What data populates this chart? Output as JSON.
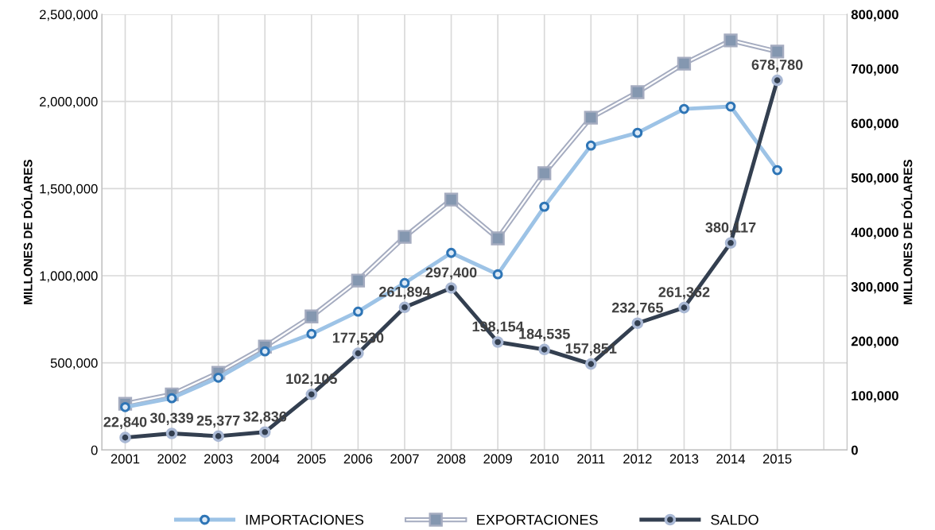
{
  "chart_data": {
    "type": "line",
    "ylabel": "MILLONES DE DÓLARES",
    "y2label": "MILLONES DE DÓLARES",
    "categories": [
      "2001",
      "2002",
      "2003",
      "2004",
      "2005",
      "2006",
      "2007",
      "2008",
      "2009",
      "2010",
      "2011",
      "2012",
      "2013",
      "2014",
      "2015",
      null
    ],
    "ylim": [
      0,
      2500000
    ],
    "yticks": [
      {
        "value": 0,
        "label": "0"
      },
      {
        "value": 500000,
        "label": "500,000"
      },
      {
        "value": 1000000,
        "label": "1,000,000"
      },
      {
        "value": 1500000,
        "label": "1,500,000"
      },
      {
        "value": 2000000,
        "label": "2,000,000"
      },
      {
        "value": 2500000,
        "label": "2,500,000"
      }
    ],
    "y2lim": [
      0,
      800000
    ],
    "y2ticks": [
      {
        "value": 0,
        "label": "0"
      },
      {
        "value": 100000,
        "label": "100,000"
      },
      {
        "value": 200000,
        "label": "200,000"
      },
      {
        "value": 300000,
        "label": "300,000"
      },
      {
        "value": 400000,
        "label": "400,000"
      },
      {
        "value": 500000,
        "label": "500,000"
      },
      {
        "value": 600000,
        "label": "600,000"
      },
      {
        "value": 700000,
        "label": "700,000"
      },
      {
        "value": 800000,
        "label": "800,000"
      }
    ],
    "grid": true,
    "legend": "bottom",
    "series": [
      {
        "name": "IMPORTACIONES",
        "color": "#9dc3e6",
        "marker": "circle",
        "values": [
          246000,
          297000,
          415000,
          566000,
          666000,
          794000,
          958000,
          1131000,
          1008000,
          1396000,
          1747000,
          1820000,
          1957000,
          1971000,
          1606000,
          null
        ]
      },
      {
        "name": "EXPORTACIONES",
        "color": "#a5acc0",
        "marker": "square",
        "values": [
          265000,
          319000,
          443000,
          593000,
          766000,
          972000,
          1223000,
          1437000,
          1214000,
          1588000,
          1907000,
          2053000,
          2217000,
          2350000,
          2286000,
          null
        ]
      },
      {
        "name": "SALDO",
        "color": "#333f50",
        "marker": "circle",
        "axis": "y2",
        "value_labels": [
          "22,840",
          "30,339",
          "25,377",
          "32,836",
          "102,105",
          "177,530",
          "261,894",
          "297,400",
          "198,154",
          "184,535",
          "157,851",
          "232,765",
          "261,362",
          "380,117",
          "678,780",
          null
        ],
        "values": [
          22840,
          30339,
          25377,
          32836,
          102105,
          177530,
          261894,
          297400,
          198154,
          184535,
          157851,
          232765,
          261362,
          380117,
          678780,
          null
        ]
      }
    ]
  }
}
